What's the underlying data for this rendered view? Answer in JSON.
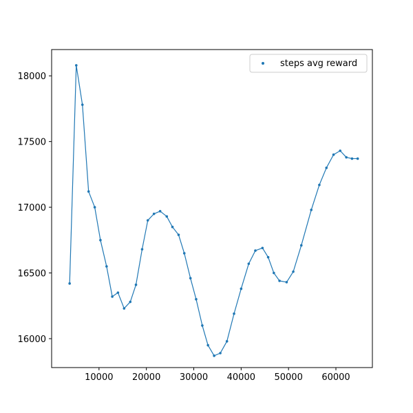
{
  "chart_data": {
    "type": "line",
    "title": "",
    "xlabel": "",
    "ylabel": "",
    "xlim": [
      0,
      67700
    ],
    "ylim": [
      15780,
      18200
    ],
    "xticks": [
      10000,
      20000,
      30000,
      40000,
      50000,
      60000
    ],
    "yticks": [
      16000,
      16500,
      17000,
      17500,
      18000
    ],
    "grid": false,
    "legend_position": "top-right",
    "series": [
      {
        "name": "steps avg reward",
        "color": "#1f77b4",
        "marker": "dot",
        "x": [
          3800,
          5200,
          6500,
          7800,
          9100,
          10300,
          11600,
          12800,
          14000,
          15300,
          16600,
          17800,
          19100,
          20300,
          21600,
          22900,
          24300,
          25500,
          26800,
          28000,
          29300,
          30500,
          31800,
          33000,
          34300,
          35600,
          37000,
          38500,
          40000,
          41600,
          43000,
          44500,
          45700,
          46900,
          48100,
          49600,
          51000,
          52700,
          54800,
          56500,
          58000,
          59500,
          60900,
          62200,
          63400,
          64600
        ],
        "y": [
          16420,
          18080,
          17780,
          17120,
          17000,
          16750,
          16550,
          16320,
          16350,
          16230,
          16280,
          16410,
          16680,
          16900,
          16950,
          16970,
          16930,
          16850,
          16790,
          16650,
          16460,
          16300,
          16100,
          15950,
          15870,
          15890,
          15980,
          16190,
          16380,
          16570,
          16670,
          16690,
          16620,
          16500,
          16440,
          16430,
          16510,
          16710,
          16980,
          17170,
          17300,
          17400,
          17430,
          17380,
          17370,
          17370
        ]
      }
    ]
  }
}
